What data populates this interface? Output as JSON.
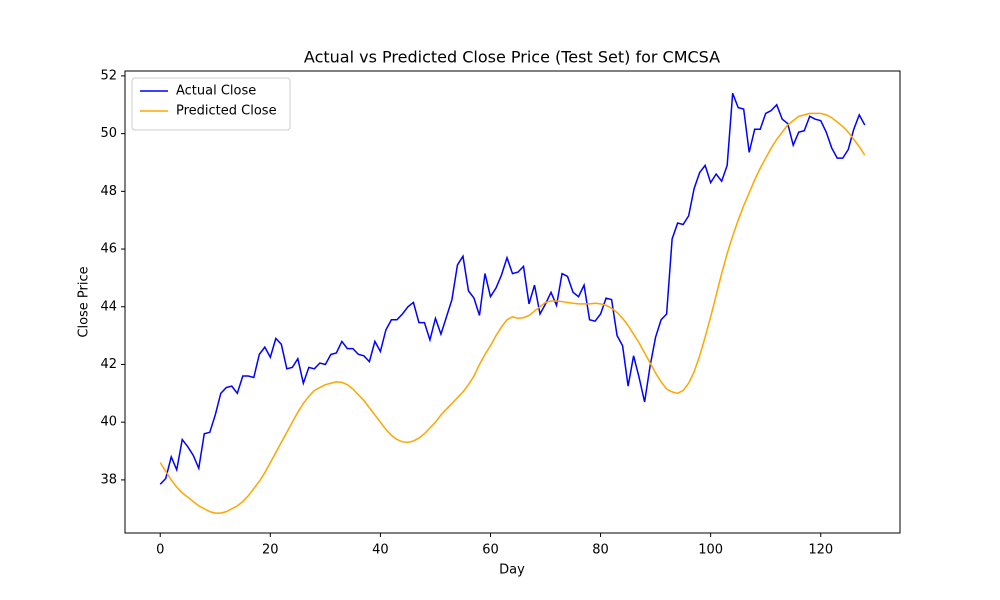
{
  "chart_data": {
    "type": "line",
    "title": "Actual vs Predicted Close Price (Test Set) for CMCSA",
    "x_label": "Day",
    "y_label": "Close Price",
    "x": [
      0,
      1,
      2,
      3,
      4,
      5,
      6,
      7,
      8,
      9,
      10,
      11,
      12,
      13,
      14,
      15,
      16,
      17,
      18,
      19,
      20,
      21,
      22,
      23,
      24,
      25,
      26,
      27,
      28,
      29,
      30,
      31,
      32,
      33,
      34,
      35,
      36,
      37,
      38,
      39,
      40,
      41,
      42,
      43,
      44,
      45,
      46,
      47,
      48,
      49,
      50,
      51,
      52,
      53,
      54,
      55,
      56,
      57,
      58,
      59,
      60,
      61,
      62,
      63,
      64,
      65,
      66,
      67,
      68,
      69,
      70,
      71,
      72,
      73,
      74,
      75,
      76,
      77,
      78,
      79,
      80,
      81,
      82,
      83,
      84,
      85,
      86,
      87,
      88,
      89,
      90,
      91,
      92,
      93,
      94,
      95,
      96,
      97,
      98,
      99,
      100,
      101,
      102,
      103,
      104,
      105,
      106,
      107,
      108,
      109,
      110,
      111,
      112,
      113,
      114,
      115,
      116,
      117,
      118,
      119,
      120,
      121,
      122,
      123,
      124,
      125,
      126,
      127,
      128
    ],
    "series": [
      {
        "name": "Actual Close",
        "color": "blue",
        "values": [
          37.85,
          38.05,
          38.8,
          38.35,
          39.4,
          39.15,
          38.85,
          38.4,
          39.6,
          39.65,
          40.25,
          41.0,
          41.2,
          41.25,
          41.0,
          41.6,
          41.6,
          41.55,
          42.35,
          42.6,
          42.25,
          42.9,
          42.7,
          41.85,
          41.9,
          42.2,
          41.35,
          41.9,
          41.85,
          42.05,
          42.0,
          42.35,
          42.4,
          42.8,
          42.55,
          42.55,
          42.35,
          42.3,
          42.1,
          42.8,
          42.45,
          43.2,
          43.55,
          43.55,
          43.75,
          44.0,
          44.15,
          43.45,
          43.45,
          42.85,
          43.6,
          43.05,
          43.65,
          44.25,
          45.45,
          45.75,
          44.55,
          44.3,
          43.7,
          45.15,
          44.35,
          44.65,
          45.1,
          45.7,
          45.15,
          45.2,
          45.4,
          44.1,
          44.75,
          43.75,
          44.1,
          44.5,
          44.05,
          45.15,
          45.05,
          44.5,
          44.35,
          44.75,
          43.55,
          43.5,
          43.75,
          44.3,
          44.25,
          43.0,
          42.65,
          41.25,
          42.3,
          41.55,
          40.7,
          41.95,
          42.95,
          43.55,
          43.75,
          46.35,
          46.9,
          46.85,
          47.15,
          48.1,
          48.65,
          48.9,
          48.3,
          48.6,
          48.35,
          48.9,
          51.4,
          50.9,
          50.85,
          49.35,
          50.15,
          50.15,
          50.7,
          50.8,
          51.0,
          50.5,
          50.35,
          49.6,
          50.05,
          50.1,
          50.6,
          50.5,
          50.45,
          50.05,
          49.5,
          49.15,
          49.15,
          49.45,
          50.15,
          50.65,
          50.3
        ]
      },
      {
        "name": "Predicted Close",
        "color": "orange",
        "values": [
          38.6,
          38.3,
          38.0,
          37.75,
          37.55,
          37.4,
          37.25,
          37.1,
          37.0,
          36.9,
          36.85,
          36.85,
          36.9,
          37.0,
          37.1,
          37.25,
          37.45,
          37.7,
          37.95,
          38.25,
          38.6,
          38.95,
          39.3,
          39.65,
          40.0,
          40.35,
          40.65,
          40.9,
          41.1,
          41.2,
          41.3,
          41.35,
          41.4,
          41.38,
          41.3,
          41.15,
          40.95,
          40.75,
          40.5,
          40.25,
          40.0,
          39.75,
          39.55,
          39.4,
          39.32,
          39.3,
          39.35,
          39.45,
          39.6,
          39.8,
          40.0,
          40.25,
          40.45,
          40.65,
          40.85,
          41.05,
          41.3,
          41.6,
          42.0,
          42.35,
          42.65,
          43.0,
          43.3,
          43.55,
          43.65,
          43.6,
          43.62,
          43.7,
          43.85,
          44.0,
          44.15,
          44.2,
          44.2,
          44.18,
          44.15,
          44.12,
          44.1,
          44.1,
          44.1,
          44.12,
          44.1,
          44.05,
          43.95,
          43.8,
          43.6,
          43.35,
          43.05,
          42.75,
          42.4,
          42.05,
          41.7,
          41.4,
          41.15,
          41.05,
          41.0,
          41.1,
          41.35,
          41.75,
          42.3,
          42.95,
          43.65,
          44.4,
          45.15,
          45.85,
          46.45,
          47.0,
          47.5,
          47.95,
          48.4,
          48.8,
          49.15,
          49.5,
          49.8,
          50.05,
          50.3,
          50.45,
          50.6,
          50.65,
          50.7,
          50.7,
          50.7,
          50.65,
          50.55,
          50.4,
          50.25,
          50.05,
          49.8,
          49.55,
          49.25
        ]
      }
    ],
    "xlim": [
      -6.4,
      134.4
    ],
    "ylim": [
      36.16,
      52.17
    ],
    "xticks": [
      0,
      20,
      40,
      60,
      80,
      100,
      120
    ],
    "yticks": [
      38,
      40,
      42,
      44,
      46,
      48,
      50,
      52
    ],
    "grid": false,
    "legend": "upper left"
  }
}
